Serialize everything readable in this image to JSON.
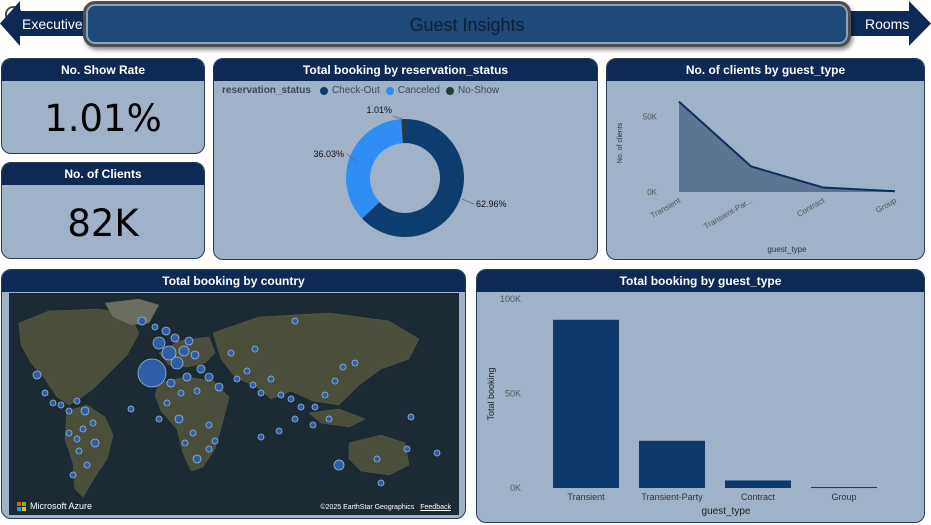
{
  "header": {
    "title": "Guest Insights",
    "nav_left": "Executive",
    "nav_right": "Rooms",
    "back_icon": "back-arrow-circle-icon"
  },
  "colors": {
    "navy": "#0c2a55",
    "card_bg": "#a0b2c7",
    "checkout": "#0d3d6e",
    "canceled": "#2e8ef5",
    "noshow": "#1f3f3a",
    "area_fill": "#5d7493",
    "bar": "#0d3a6b",
    "map_bubble": "#2e5ea6"
  },
  "kpi_show_rate": {
    "title": "No. Show Rate",
    "value": "1.01%"
  },
  "kpi_clients": {
    "title": "No. of Clients",
    "value": "82K"
  },
  "status_chart": {
    "title": "Total booking by reservation_status",
    "legend_title": "reservation_status",
    "legend": [
      "Check-Out",
      "Canceled",
      "No-Show"
    ]
  },
  "clients_chart": {
    "title": "No. of clients by guest_type",
    "xlabel": "guest_type",
    "ylabel": "No. of clients",
    "y_ticks": [
      "50K",
      "0K"
    ],
    "x_ticks": [
      "Transient",
      "Transient-Par...",
      "Contract",
      "Group"
    ]
  },
  "map": {
    "title": "Total booking by country",
    "brand": "Microsoft Azure",
    "credit": "©2025 EarthStar Geographics",
    "feedback": "Feedback"
  },
  "bar_chart": {
    "title": "Total booking by guest_type",
    "xlabel": "guest_type",
    "ylabel": "Total booking",
    "y_ticks": [
      "100K",
      "50K",
      "0K"
    ]
  },
  "chart_data": [
    {
      "type": "pie",
      "title": "Total booking by reservation_status",
      "categories": [
        "Check-Out",
        "Canceled",
        "No-Show"
      ],
      "values": [
        62.96,
        36.03,
        1.01
      ],
      "labels": [
        "62.96%",
        "36.03%",
        "1.01%"
      ],
      "donut": true,
      "legend_position": "top-left"
    },
    {
      "type": "area",
      "title": "No. of clients by guest_type",
      "categories": [
        "Transient",
        "Transient-Party",
        "Contract",
        "Group"
      ],
      "values": [
        60000,
        17000,
        3000,
        500
      ],
      "xlabel": "guest_type",
      "ylabel": "No. of clients",
      "ylim": [
        0,
        75000
      ]
    },
    {
      "type": "bar",
      "title": "Total booking by guest_type",
      "categories": [
        "Transient",
        "Transient-Party",
        "Contract",
        "Group"
      ],
      "values": [
        89000,
        25000,
        4000,
        500
      ],
      "xlabel": "guest_type",
      "ylabel": "Total booking",
      "ylim": [
        0,
        100000
      ]
    }
  ]
}
